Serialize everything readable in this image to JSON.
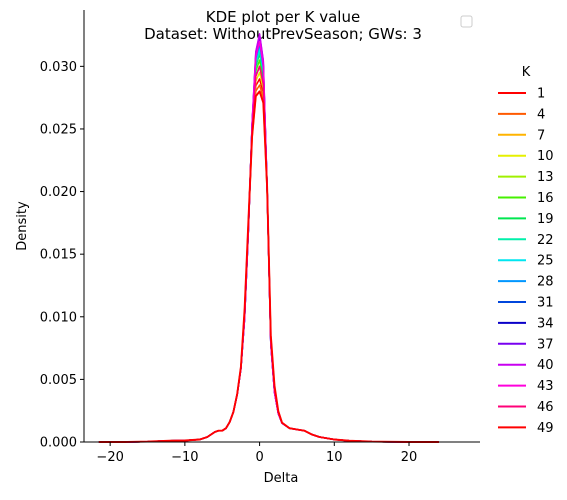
{
  "chart_data": {
    "type": "line",
    "title": "KDE plot per K value",
    "subtitle": "Dataset: WithoutPrevSeason; GWs: 3",
    "xlabel": "Delta",
    "ylabel": "Density",
    "xlim": [
      -23.5,
      29.5
    ],
    "ylim": [
      0,
      0.0345
    ],
    "xticks": [
      -20,
      -10,
      0,
      10,
      20
    ],
    "xtick_labels": [
      "−20",
      "−10",
      "0",
      "10",
      "20"
    ],
    "yticks": [
      0.0,
      0.005,
      0.01,
      0.015,
      0.02,
      0.025,
      0.03
    ],
    "ytick_labels": [
      "0.000",
      "0.005",
      "0.010",
      "0.015",
      "0.020",
      "0.025",
      "0.030"
    ],
    "grid": false,
    "legend": {
      "title": "K",
      "placement": "right"
    },
    "series": [
      {
        "name": "1",
        "color": "#ff0000",
        "peak": 0.029,
        "sigma": 0.85
      },
      {
        "name": "4",
        "color": "#ff5a00",
        "peak": 0.0285,
        "sigma": 0.85
      },
      {
        "name": "7",
        "color": "#ffb400",
        "peak": 0.028,
        "sigma": 0.85
      },
      {
        "name": "10",
        "color": "#e6f000",
        "peak": 0.0295,
        "sigma": 0.82
      },
      {
        "name": "13",
        "color": "#a0f000",
        "peak": 0.03,
        "sigma": 0.8
      },
      {
        "name": "16",
        "color": "#46f000",
        "peak": 0.0305,
        "sigma": 0.8
      },
      {
        "name": "19",
        "color": "#00e650",
        "peak": 0.031,
        "sigma": 0.78
      },
      {
        "name": "22",
        "color": "#00f0aa",
        "peak": 0.0312,
        "sigma": 0.78
      },
      {
        "name": "25",
        "color": "#00e6f0",
        "peak": 0.0315,
        "sigma": 0.77
      },
      {
        "name": "28",
        "color": "#0096ff",
        "peak": 0.0318,
        "sigma": 0.76
      },
      {
        "name": "31",
        "color": "#0046dc",
        "peak": 0.032,
        "sigma": 0.76
      },
      {
        "name": "34",
        "color": "#0a00c8",
        "peak": 0.0322,
        "sigma": 0.75
      },
      {
        "name": "37",
        "color": "#7800f0",
        "peak": 0.0325,
        "sigma": 0.75
      },
      {
        "name": "40",
        "color": "#c800f0",
        "peak": 0.0326,
        "sigma": 0.75
      },
      {
        "name": "43",
        "color": "#ff00dc",
        "peak": 0.032,
        "sigma": 0.76
      },
      {
        "name": "46",
        "color": "#ff0078",
        "peak": 0.03,
        "sigma": 0.8
      },
      {
        "name": "49",
        "color": "#ff0000",
        "peak": 0.028,
        "sigma": 0.88
      }
    ],
    "profile": {
      "x": [
        -21.5,
        -18,
        -15,
        -12,
        -10,
        -8,
        -7,
        -6,
        -5.5,
        -5,
        -4.5,
        -4,
        -3.5,
        -3,
        -2.5,
        -2,
        -1.5,
        -1,
        -0.5,
        0,
        0.5,
        1,
        1.5,
        2,
        2.5,
        3,
        4,
        5,
        6,
        7,
        8,
        10,
        12,
        15,
        20,
        24
      ],
      "y": [
        0.0,
        0.0,
        3e-05,
        0.0001,
        0.00012,
        0.0002,
        0.0004,
        0.0008,
        0.0009,
        0.0009,
        0.0011,
        0.0016,
        0.0024,
        0.0038,
        0.0058,
        0.0092,
        0.0145,
        0.0205,
        0.0255,
        0.0275,
        0.022,
        0.012,
        0.006,
        0.0035,
        0.0022,
        0.0015,
        0.0011,
        0.001,
        0.0009,
        0.0006,
        0.0004,
        0.0002,
        0.0001,
        3e-05,
        0.0,
        0.0
      ]
    }
  }
}
